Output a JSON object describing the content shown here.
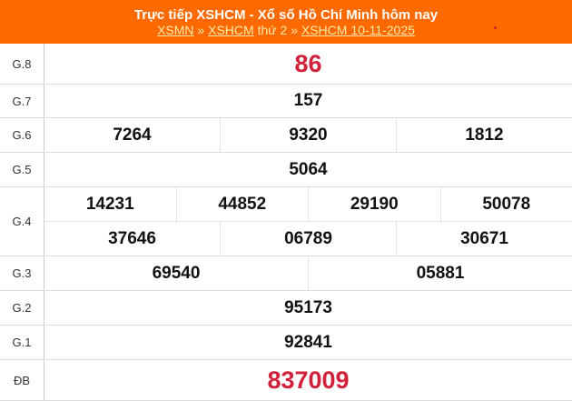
{
  "header": {
    "title": "Trực tiếp XSHCM - Xổ số Hồ Chí Minh hôm nay",
    "link1": "XSMN",
    "sep1": " » ",
    "link2": "XSHCM",
    "text2": " thứ 2 » ",
    "link3": "XSHCM 10-11-2025"
  },
  "colors": {
    "header": "#ff6a00",
    "special": "#d0203a"
  },
  "prizes": [
    {
      "label": "G.8",
      "lines": [
        [
          "86"
        ]
      ],
      "red": true
    },
    {
      "label": "G.7",
      "lines": [
        [
          "157"
        ]
      ]
    },
    {
      "label": "G.6",
      "lines": [
        [
          "7264",
          "9320",
          "1812"
        ]
      ]
    },
    {
      "label": "G.5",
      "lines": [
        [
          "5064"
        ]
      ]
    },
    {
      "label": "G.4",
      "lines": [
        [
          "14231",
          "44852",
          "29190",
          "50078"
        ],
        [
          "37646",
          "06789",
          "30671"
        ]
      ]
    },
    {
      "label": "G.3",
      "lines": [
        [
          "69540",
          "05881"
        ]
      ]
    },
    {
      "label": "G.2",
      "lines": [
        [
          "95173"
        ]
      ]
    },
    {
      "label": "G.1",
      "lines": [
        [
          "92841"
        ]
      ]
    },
    {
      "label": "ĐB",
      "lines": [
        [
          "837009"
        ]
      ],
      "red": true
    }
  ]
}
